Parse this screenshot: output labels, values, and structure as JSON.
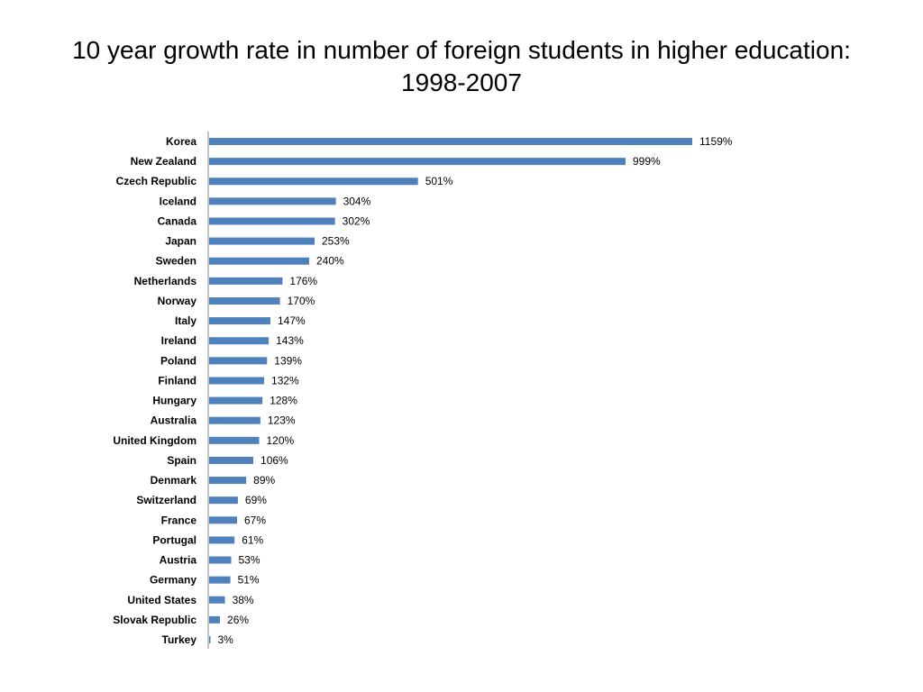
{
  "slide": {
    "title_line1": "10 year growth rate in number of foreign students in higher education:",
    "title_line2": "1998-2007"
  },
  "chart_data": {
    "type": "bar",
    "orientation": "horizontal",
    "title": "10 year growth rate in number of foreign students in higher education: 1998-2007",
    "categories": [
      "Korea",
      "New Zealand",
      "Czech Republic",
      "Iceland",
      "Canada",
      "Japan",
      "Sweden",
      "Netherlands",
      "Norway",
      "Italy",
      "Ireland",
      "Poland",
      "Finland",
      "Hungary",
      "Australia",
      "United Kingdom",
      "Spain",
      "Denmark",
      "Switzerland",
      "France",
      "Portugal",
      "Austria",
      "Germany",
      "United States",
      "Slovak Republic",
      "Turkey"
    ],
    "values": [
      1159,
      999,
      501,
      304,
      302,
      253,
      240,
      176,
      170,
      147,
      143,
      139,
      132,
      128,
      123,
      120,
      106,
      89,
      69,
      67,
      61,
      53,
      51,
      38,
      26,
      3
    ],
    "value_suffix": "%",
    "xlim": [
      0,
      1159
    ],
    "grid": false,
    "legend": "none",
    "colors": {
      "bar": "#4f81bd",
      "axis": "#868686"
    }
  }
}
